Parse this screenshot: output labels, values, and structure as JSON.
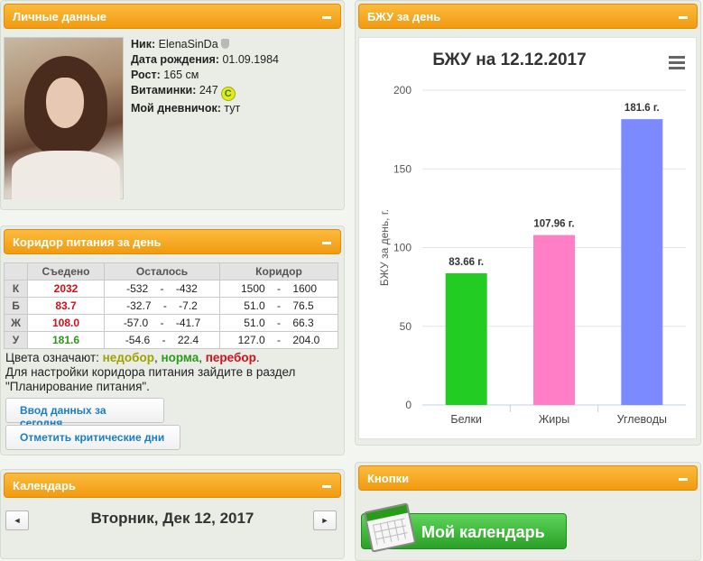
{
  "personal": {
    "title": "Личные данные",
    "nick_label": "Ник:",
    "nick": "ElenaSinDa",
    "birth_label": "Дата рождения:",
    "birth": "01.09.1984",
    "height_label": "Рост:",
    "height": "165 см",
    "vitamins_label": "Витаминки:",
    "vitamins": "247",
    "vitamins_icon": "С",
    "diary_label": "Мой дневничок:",
    "diary": "тут"
  },
  "corridor": {
    "title": "Коридор питания за день",
    "headers": [
      "",
      "Съедено",
      "Осталось",
      "Коридор"
    ],
    "rows": [
      {
        "label": "К",
        "eaten": "2032",
        "left": "-532    -    -432",
        "corridor": "1500    -    1600",
        "color": "red"
      },
      {
        "label": "Б",
        "eaten": "83.7",
        "left": "-32.7    -    -7.2",
        "corridor": "51.0    -    76.5",
        "color": "red"
      },
      {
        "label": "Ж",
        "eaten": "108.0",
        "left": "-57.0    -    -41.7",
        "corridor": "51.0    -    66.3",
        "color": "red"
      },
      {
        "label": "У",
        "eaten": "181.6",
        "left": "-54.6    -    22.4",
        "corridor": "127.0    -    204.0",
        "color": "green"
      }
    ],
    "legend_prefix": "Цвета означают: ",
    "legend_under": "недобор",
    "legend_sep1": ", ",
    "legend_norm": "норма",
    "legend_sep2": ", ",
    "legend_over": "перебор",
    "legend_end": ".",
    "hint": "Для настройки коридора питания зайдите в раздел \"Планирование питания\".",
    "btn_today": "Ввод данных за сегодня",
    "btn_critical": "Отметить критические дни"
  },
  "calendar": {
    "title": "Календарь",
    "date": "Вторник, Дек 12, 2017",
    "prev": "◄",
    "next": "►"
  },
  "bju": {
    "title": "БЖУ за день"
  },
  "buttons": {
    "title": "Кнопки",
    "my_calendar": "Мой календарь"
  },
  "chart_data": {
    "type": "bar",
    "title": "БЖУ на 12.12.2017",
    "ylabel": "БЖУ за день, г.",
    "categories": [
      "Белки",
      "Жиры",
      "Углеводы"
    ],
    "values": [
      83.66,
      107.96,
      181.6
    ],
    "data_labels": [
      "83.66 г.",
      "107.96 г.",
      "181.6 г."
    ],
    "colors": [
      "#22cc22",
      "#ff7ec6",
      "#7b8bff"
    ],
    "ylim": [
      0,
      200
    ],
    "yticks": [
      0,
      50,
      100,
      150,
      200
    ],
    "grid": true,
    "legend": false
  }
}
